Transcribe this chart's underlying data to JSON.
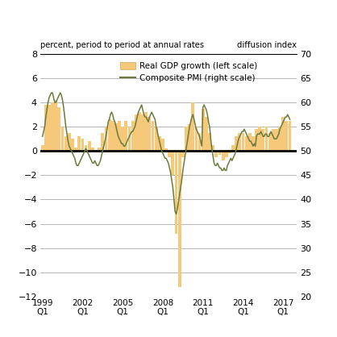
{
  "title_left": "percent, period to period at annual rates",
  "title_right": "diffusion index",
  "ylim_left": [
    -12,
    8
  ],
  "ylim_right": [
    20,
    70
  ],
  "yticks_left": [
    -12,
    -10,
    -8,
    -6,
    -4,
    -2,
    0,
    2,
    4,
    6,
    8
  ],
  "yticks_right": [
    20,
    25,
    30,
    35,
    40,
    45,
    50,
    55,
    60,
    65,
    70
  ],
  "xtick_years": [
    1999,
    2002,
    2005,
    2008,
    2011,
    2014,
    2017
  ],
  "bar_color": "#F5C87A",
  "line_color": "#6B7C3A",
  "background_color": "#ffffff",
  "gdp_label": "Real GDP growth (left scale)",
  "pmi_label": "Composite PMI (right scale)",
  "xlim": [
    1998.85,
    2018.0
  ],
  "gdp_data": {
    "dates": [
      1999.0,
      1999.25,
      1999.5,
      1999.75,
      2000.0,
      2000.25,
      2000.5,
      2000.75,
      2001.0,
      2001.25,
      2001.5,
      2001.75,
      2002.0,
      2002.25,
      2002.5,
      2002.75,
      2003.0,
      2003.25,
      2003.5,
      2003.75,
      2004.0,
      2004.25,
      2004.5,
      2004.75,
      2005.0,
      2005.25,
      2005.5,
      2005.75,
      2006.0,
      2006.25,
      2006.5,
      2006.75,
      2007.0,
      2007.25,
      2007.5,
      2007.75,
      2008.0,
      2008.25,
      2008.5,
      2008.75,
      2009.0,
      2009.25,
      2009.5,
      2009.75,
      2010.0,
      2010.25,
      2010.5,
      2010.75,
      2011.0,
      2011.25,
      2011.5,
      2011.75,
      2012.0,
      2012.25,
      2012.5,
      2012.75,
      2013.0,
      2013.25,
      2013.5,
      2013.75,
      2014.0,
      2014.25,
      2014.5,
      2014.75,
      2015.0,
      2015.25,
      2015.5,
      2015.75,
      2016.0,
      2016.25,
      2016.5,
      2016.75,
      2017.0,
      2017.25,
      2017.5
    ],
    "values": [
      0.5,
      3.8,
      3.8,
      4.0,
      4.2,
      3.6,
      2.0,
      1.2,
      1.5,
      1.0,
      0.3,
      1.2,
      1.0,
      0.5,
      0.8,
      0.3,
      0.0,
      0.3,
      1.5,
      2.0,
      2.6,
      2.5,
      2.3,
      2.5,
      2.0,
      2.5,
      2.0,
      2.5,
      3.0,
      3.2,
      3.0,
      3.2,
      2.8,
      2.5,
      2.0,
      1.2,
      1.0,
      0.2,
      -0.5,
      -2.0,
      -6.8,
      -11.2,
      -0.5,
      2.0,
      2.2,
      4.0,
      2.0,
      1.5,
      3.5,
      2.8,
      1.5,
      0.5,
      -0.5,
      -0.3,
      -0.8,
      -0.5,
      -0.2,
      0.5,
      1.2,
      1.5,
      1.5,
      1.2,
      1.5,
      1.2,
      1.8,
      2.0,
      1.8,
      2.0,
      1.5,
      1.8,
      1.8,
      2.0,
      2.8,
      2.5,
      2.5
    ]
  },
  "pmi_data": {
    "dates": [
      1999.0,
      1999.083,
      1999.167,
      1999.25,
      1999.333,
      1999.417,
      1999.5,
      1999.583,
      1999.667,
      1999.75,
      1999.833,
      1999.917,
      2000.0,
      2000.083,
      2000.167,
      2000.25,
      2000.333,
      2000.417,
      2000.5,
      2000.583,
      2000.667,
      2000.75,
      2000.833,
      2000.917,
      2001.0,
      2001.083,
      2001.167,
      2001.25,
      2001.333,
      2001.417,
      2001.5,
      2001.583,
      2001.667,
      2001.75,
      2001.833,
      2001.917,
      2002.0,
      2002.083,
      2002.167,
      2002.25,
      2002.333,
      2002.417,
      2002.5,
      2002.583,
      2002.667,
      2002.75,
      2002.833,
      2002.917,
      2003.0,
      2003.083,
      2003.167,
      2003.25,
      2003.333,
      2003.417,
      2003.5,
      2003.583,
      2003.667,
      2003.75,
      2003.833,
      2003.917,
      2004.0,
      2004.083,
      2004.167,
      2004.25,
      2004.333,
      2004.417,
      2004.5,
      2004.583,
      2004.667,
      2004.75,
      2004.833,
      2004.917,
      2005.0,
      2005.083,
      2005.167,
      2005.25,
      2005.333,
      2005.417,
      2005.5,
      2005.583,
      2005.667,
      2005.75,
      2005.833,
      2005.917,
      2006.0,
      2006.083,
      2006.167,
      2006.25,
      2006.333,
      2006.417,
      2006.5,
      2006.583,
      2006.667,
      2006.75,
      2006.833,
      2006.917,
      2007.0,
      2007.083,
      2007.167,
      2007.25,
      2007.333,
      2007.417,
      2007.5,
      2007.583,
      2007.667,
      2007.75,
      2007.833,
      2007.917,
      2008.0,
      2008.083,
      2008.167,
      2008.25,
      2008.333,
      2008.417,
      2008.5,
      2008.583,
      2008.667,
      2008.75,
      2008.833,
      2008.917,
      2009.0,
      2009.083,
      2009.167,
      2009.25,
      2009.333,
      2009.417,
      2009.5,
      2009.583,
      2009.667,
      2009.75,
      2009.833,
      2009.917,
      2010.0,
      2010.083,
      2010.167,
      2010.25,
      2010.333,
      2010.417,
      2010.5,
      2010.583,
      2010.667,
      2010.75,
      2010.833,
      2010.917,
      2011.0,
      2011.083,
      2011.167,
      2011.25,
      2011.333,
      2011.417,
      2011.5,
      2011.583,
      2011.667,
      2011.75,
      2011.833,
      2011.917,
      2012.0,
      2012.083,
      2012.167,
      2012.25,
      2012.333,
      2012.417,
      2012.5,
      2012.583,
      2012.667,
      2012.75,
      2012.833,
      2012.917,
      2013.0,
      2013.083,
      2013.167,
      2013.25,
      2013.333,
      2013.417,
      2013.5,
      2013.583,
      2013.667,
      2013.75,
      2013.833,
      2013.917,
      2014.0,
      2014.083,
      2014.167,
      2014.25,
      2014.333,
      2014.417,
      2014.5,
      2014.583,
      2014.667,
      2014.75,
      2014.833,
      2014.917,
      2015.0,
      2015.083,
      2015.167,
      2015.25,
      2015.333,
      2015.417,
      2015.5,
      2015.583,
      2015.667,
      2015.75,
      2015.833,
      2015.917,
      2016.0,
      2016.083,
      2016.167,
      2016.25,
      2016.333,
      2016.417,
      2016.5,
      2016.583,
      2016.667,
      2016.75,
      2016.833,
      2016.917,
      2017.0,
      2017.083,
      2017.167,
      2017.25,
      2017.333,
      2017.417,
      2017.5
    ],
    "values": [
      53,
      54,
      55,
      57,
      58.5,
      60,
      61,
      61.5,
      62,
      62,
      61,
      60,
      60,
      60.5,
      61,
      61.5,
      62,
      61.5,
      60.5,
      59,
      57,
      55,
      53.5,
      52,
      51,
      50.5,
      50,
      49.5,
      49,
      48.5,
      47.5,
      47,
      47,
      47.5,
      48,
      48.5,
      49,
      49.5,
      50,
      50.5,
      50,
      49.5,
      49,
      48.5,
      48,
      47.5,
      47.5,
      48,
      47.5,
      47,
      47,
      47.5,
      48,
      49,
      50,
      51,
      52,
      53,
      54.5,
      56,
      56.5,
      57.5,
      58,
      57.5,
      56.5,
      56,
      55,
      54,
      53,
      52.5,
      52,
      51.5,
      51.5,
      51,
      51,
      51.5,
      52,
      52.5,
      53,
      53.5,
      54,
      54,
      54.5,
      55,
      56,
      57,
      58,
      58.5,
      59,
      59.5,
      58.5,
      57.5,
      57,
      57,
      56.5,
      56,
      57,
      57.5,
      58,
      57.5,
      57,
      56.5,
      55,
      54,
      53,
      52,
      51,
      50,
      49.5,
      49,
      48.5,
      48.5,
      48,
      47.5,
      46.5,
      45.5,
      44,
      42.5,
      40,
      37.5,
      37,
      38,
      39.5,
      41,
      42.5,
      44,
      46,
      47.5,
      49,
      50.5,
      52,
      53.5,
      55,
      56,
      57,
      57.5,
      56.5,
      55.5,
      54.5,
      54,
      53.5,
      53,
      52,
      51,
      59,
      59.5,
      59,
      58.5,
      57.5,
      56,
      55,
      52.5,
      50.5,
      49,
      47.5,
      47,
      47,
      47.5,
      47,
      46.5,
      46.5,
      46,
      46,
      46.5,
      46,
      46,
      47,
      47.5,
      48,
      48.5,
      48,
      48.5,
      49,
      49.5,
      50.5,
      51.5,
      52.5,
      53,
      53.5,
      54,
      54,
      54.5,
      54,
      53.5,
      53,
      52.5,
      52,
      52,
      51.5,
      51,
      51.5,
      51,
      53,
      53.5,
      53.5,
      53.5,
      54,
      53.5,
      53,
      53,
      53.5,
      53.5,
      53,
      53,
      53.5,
      54,
      53.5,
      53,
      52.5,
      52.5,
      52.5,
      53,
      53.5,
      54.5,
      55,
      55.5,
      56,
      56.5,
      57,
      57,
      57.5,
      57,
      56.5
    ]
  }
}
